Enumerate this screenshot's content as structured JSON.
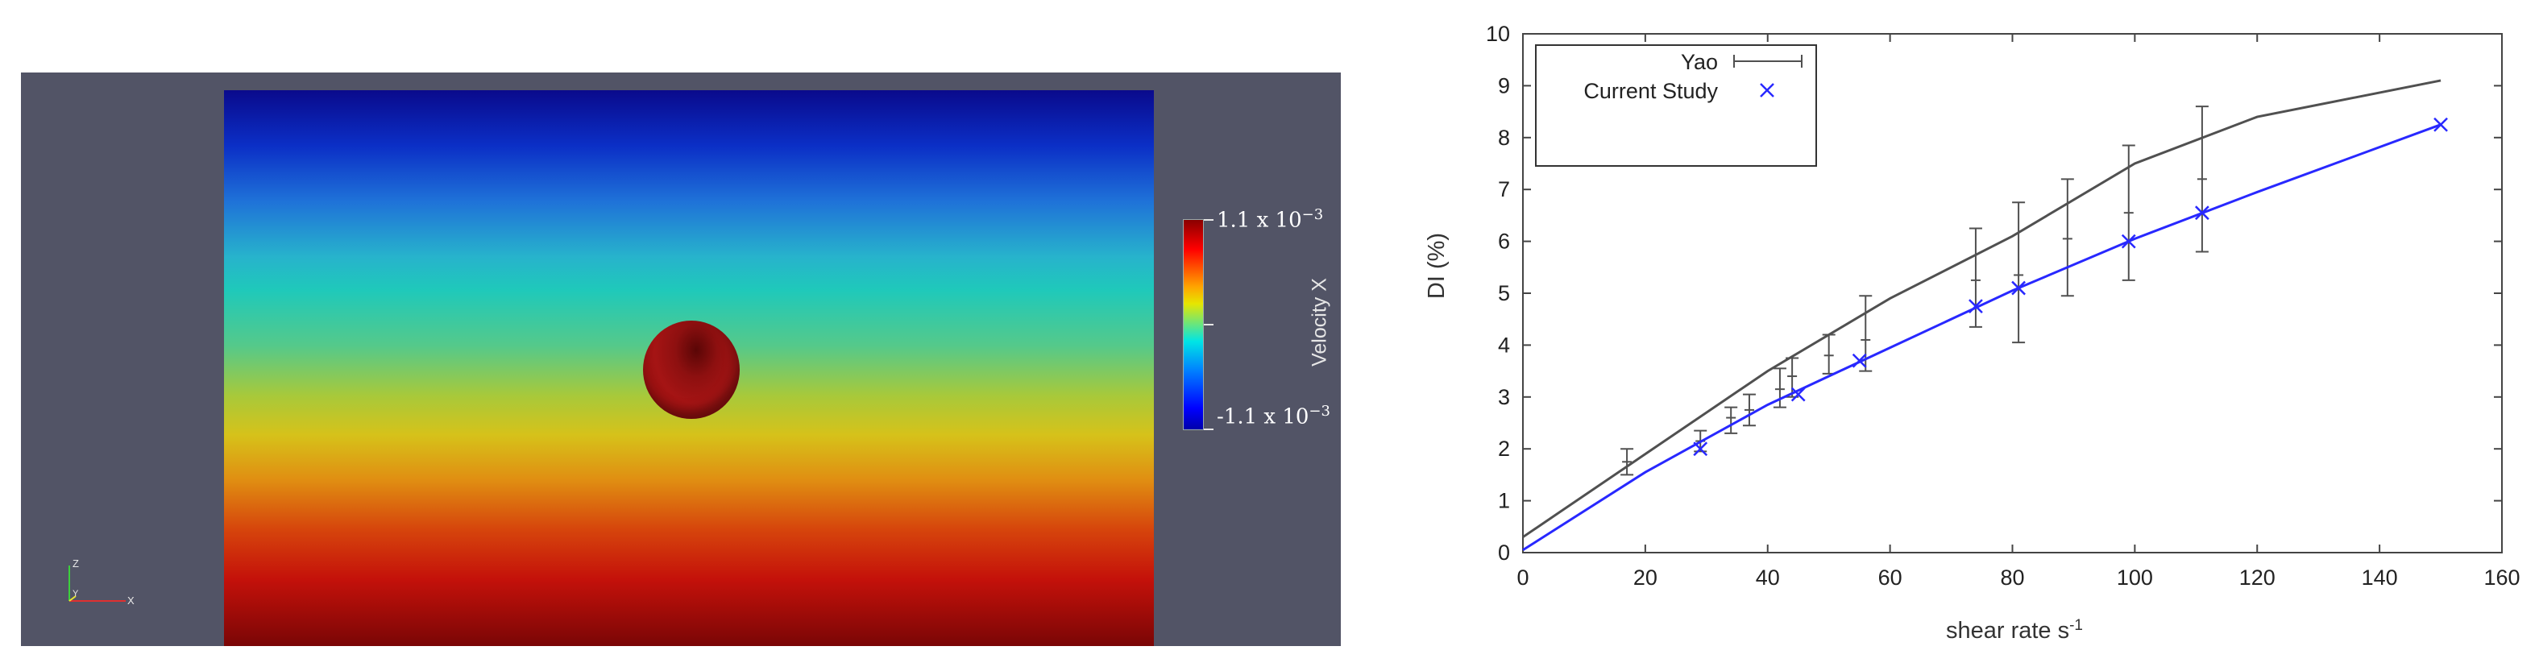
{
  "simulation_view": {
    "colorbar_title": "Velocity X",
    "colorbar_max_label": "1.1 x 10",
    "colorbar_min_label": "-1.1 x 10",
    "colorbar_exponent": "−3",
    "axis_labels": {
      "z": "Z",
      "y": "Y",
      "x": "X"
    },
    "background_color": "#525466"
  },
  "chart_data": {
    "type": "line",
    "title": "",
    "xlabel": "shear rate s",
    "xlabel_superscript": "-1",
    "ylabel": "DI  (%)",
    "xlim": [
      0,
      160
    ],
    "ylim": [
      0,
      10
    ],
    "x_ticks": [
      "0",
      "20",
      "40",
      "60",
      "80",
      "100",
      "120",
      "140",
      "160"
    ],
    "y_ticks": [
      "0",
      "1",
      "2",
      "3",
      "4",
      "5",
      "6",
      "7",
      "8",
      "9",
      "10"
    ],
    "grid": false,
    "legend_position": "top-left",
    "series": [
      {
        "name": "Yao",
        "color": "#505050",
        "style": "line-with-errorbars",
        "line": {
          "x": [
            0,
            20,
            40,
            60,
            80,
            100,
            120,
            150
          ],
          "y": [
            0.3,
            1.9,
            3.5,
            4.9,
            6.1,
            7.5,
            8.4,
            9.1
          ]
        },
        "points": [
          {
            "x": 17,
            "y": 1.75,
            "err_low": 1.5,
            "err_high": 2.0
          },
          {
            "x": 29,
            "y": 2.15,
            "err_low": 1.95,
            "err_high": 2.35
          },
          {
            "x": 34,
            "y": 2.6,
            "err_low": 2.3,
            "err_high": 2.8
          },
          {
            "x": 37,
            "y": 2.75,
            "err_low": 2.45,
            "err_high": 3.05
          },
          {
            "x": 42,
            "y": 3.15,
            "err_low": 2.8,
            "err_high": 3.55
          },
          {
            "x": 44,
            "y": 3.4,
            "err_low": 3.0,
            "err_high": 3.75
          },
          {
            "x": 50,
            "y": 3.8,
            "err_low": 3.45,
            "err_high": 4.2
          },
          {
            "x": 56,
            "y": 4.1,
            "err_low": 3.5,
            "err_high": 4.95
          },
          {
            "x": 74,
            "y": 5.25,
            "err_low": 4.35,
            "err_high": 6.25
          },
          {
            "x": 81,
            "y": 5.35,
            "err_low": 4.05,
            "err_high": 6.75
          },
          {
            "x": 89,
            "y": 6.05,
            "err_low": 4.95,
            "err_high": 7.2
          },
          {
            "x": 99,
            "y": 6.55,
            "err_low": 5.25,
            "err_high": 7.85
          },
          {
            "x": 111,
            "y": 7.2,
            "err_low": 5.8,
            "err_high": 8.6
          }
        ]
      },
      {
        "name": "Current Study",
        "color": "#2828ff",
        "style": "line-with-markers",
        "line": {
          "x": [
            0,
            20,
            40,
            60,
            80,
            100,
            120,
            150
          ],
          "y": [
            0.05,
            1.55,
            2.85,
            3.95,
            5.05,
            6.05,
            6.95,
            8.25
          ]
        },
        "points": [
          {
            "x": 29,
            "y": 2.0
          },
          {
            "x": 45,
            "y": 3.05
          },
          {
            "x": 55,
            "y": 3.7
          },
          {
            "x": 74,
            "y": 4.75
          },
          {
            "x": 81,
            "y": 5.1
          },
          {
            "x": 99,
            "y": 6.0
          },
          {
            "x": 111,
            "y": 6.55
          },
          {
            "x": 150,
            "y": 8.25
          }
        ]
      }
    ]
  }
}
